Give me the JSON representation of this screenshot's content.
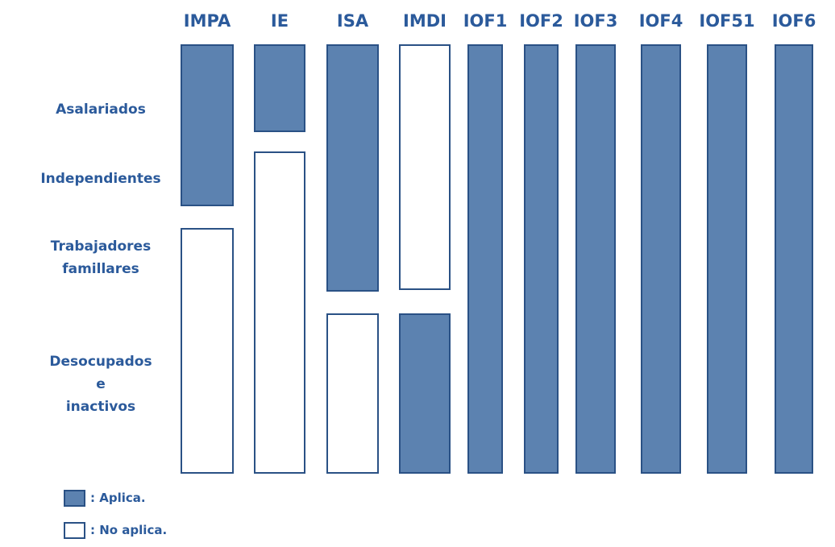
{
  "columns": [
    "IMPA",
    "IE",
    "ISA",
    "IMDI",
    "IOF1",
    "IOF2",
    "IOF3",
    "IOF4",
    "IOF51",
    "IOF6"
  ],
  "rows": [
    "Asalariados",
    "Independientes",
    "Trabajadores\nfamillares",
    "Desocupados\ne\ninactivos"
  ],
  "coverage": [
    [
      true,
      true,
      false,
      false
    ],
    [
      true,
      false,
      false,
      false
    ],
    [
      true,
      true,
      true,
      false
    ],
    [
      false,
      false,
      false,
      true
    ],
    [
      true,
      true,
      true,
      true
    ],
    [
      true,
      true,
      true,
      true
    ],
    [
      true,
      true,
      true,
      true
    ],
    [
      true,
      true,
      true,
      true
    ],
    [
      true,
      true,
      true,
      true
    ],
    [
      true,
      true,
      true,
      true
    ]
  ],
  "legend": [
    {
      "label": ": Aplica.",
      "applies": true
    },
    {
      "label": ": No aplica.",
      "applies": false
    }
  ],
  "colors": {
    "applies_fill": "#5c82b0",
    "border": "#2a5185",
    "text": "#2b5a9b"
  }
}
